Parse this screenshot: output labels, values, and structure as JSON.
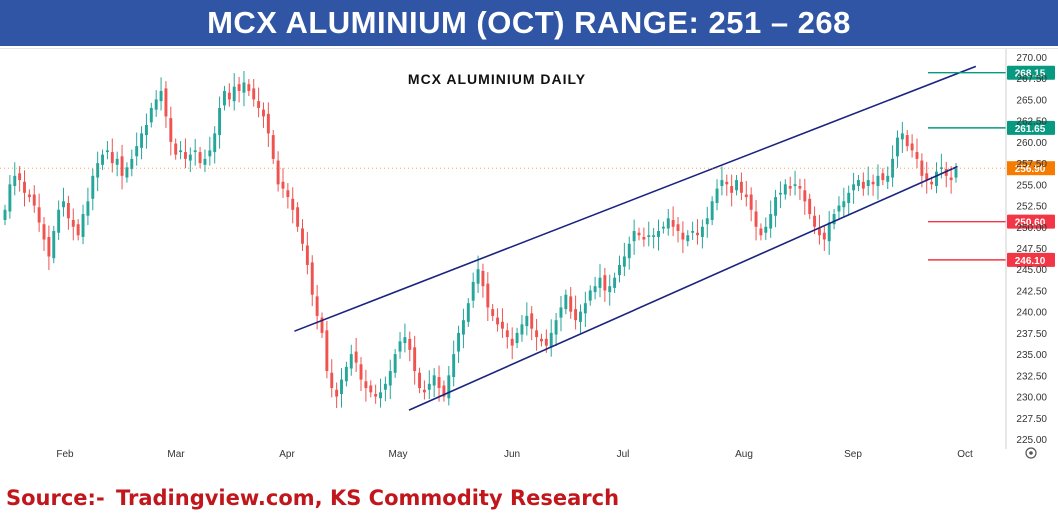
{
  "header": {
    "title": "MCX ALUMINIUM (OCT) RANGE: 251 – 268"
  },
  "footer": {
    "source_label": "Source:- ",
    "source_value": "Tradingview.com, KS Commodity Research"
  },
  "chart_data": {
    "type": "candlestick",
    "title": "MCX ALUMINIUM DAILY",
    "x_tick_labels": [
      "Feb",
      "Mar",
      "Apr",
      "May",
      "Jun",
      "Jul",
      "Aug",
      "Sep",
      "Oct"
    ],
    "y_tick_labels": [
      "225.00",
      "227.50",
      "230.00",
      "232.50",
      "235.00",
      "237.50",
      "240.00",
      "242.50",
      "245.00",
      "247.50",
      "250.00",
      "252.50",
      "255.00",
      "257.50",
      "260.00",
      "262.50",
      "265.00",
      "267.50",
      "270.00"
    ],
    "ylim": [
      225,
      270
    ],
    "grid": false,
    "colors": {
      "up": "#26a69a",
      "down": "#ef5350",
      "channel": "#1a237e",
      "resistance": "#089981",
      "support": "#f23645",
      "last_price": "#f57c00"
    },
    "levels": [
      {
        "label": "268.15",
        "value": 268.15,
        "kind": "resistance"
      },
      {
        "label": "261.65",
        "value": 261.65,
        "kind": "resistance"
      },
      {
        "label": "250.60",
        "value": 250.6,
        "kind": "support"
      },
      {
        "label": "246.10",
        "value": 246.1,
        "kind": "support"
      }
    ],
    "last_price": {
      "label": "256.90",
      "value": 256.9
    },
    "channel": {
      "upper": [
        {
          "date": "Apr 3",
          "value": 237.7
        },
        {
          "date": "Oct 4",
          "value": 268.9
        }
      ],
      "lower": [
        {
          "date": "May 4",
          "value": 228.4
        },
        {
          "date": "Sep 29",
          "value": 257.1
        }
      ]
    },
    "closes": [
      252.0,
      255.0,
      256.0,
      255.5,
      254.0,
      253.5,
      252.5,
      250.5,
      248.5,
      246.5,
      249.5,
      252.0,
      253.0,
      251.0,
      250.0,
      249.0,
      251.5,
      253.0,
      256.0,
      257.5,
      258.5,
      259.0,
      257.5,
      258.0,
      256.0,
      257.0,
      258.0,
      259.5,
      261.0,
      262.0,
      264.0,
      265.0,
      266.0,
      263.0,
      260.0,
      258.5,
      259.0,
      258.0,
      258.5,
      259.0,
      257.5,
      258.0,
      259.0,
      261.0,
      264.0,
      266.0,
      265.0,
      266.5,
      266.0,
      267.0,
      266.0,
      265.0,
      264.0,
      263.0,
      261.0,
      258.0,
      255.0,
      254.5,
      253.5,
      252.0,
      250.0,
      248.0,
      245.5,
      242.0,
      239.5,
      237.5,
      233.0,
      231.0,
      230.0,
      232.0,
      233.5,
      235.0,
      234.0,
      232.0,
      231.0,
      230.5,
      230.0,
      230.5,
      231.5,
      233.0,
      235.0,
      236.5,
      237.0,
      235.5,
      233.0,
      231.0,
      230.5,
      231.5,
      232.5,
      231.0,
      230.0,
      232.5,
      235.0,
      237.5,
      239.0,
      241.0,
      243.5,
      245.0,
      243.0,
      240.5,
      239.5,
      238.5,
      238.0,
      237.0,
      236.0,
      237.5,
      238.5,
      239.5,
      238.0,
      237.0,
      236.5,
      236.0,
      237.5,
      239.0,
      240.5,
      242.0,
      240.0,
      239.0,
      240.0,
      241.0,
      242.5,
      243.0,
      244.0,
      242.5,
      243.0,
      244.0,
      245.5,
      246.5,
      248.0,
      249.5,
      249.0,
      248.5,
      249.0,
      249.0,
      249.5,
      250.0,
      251.0,
      250.0,
      249.5,
      248.5,
      249.0,
      249.5,
      249.0,
      250.0,
      251.0,
      253.0,
      254.5,
      255.5,
      255.0,
      254.0,
      255.5,
      254.0,
      253.5,
      252.0,
      250.0,
      249.0,
      250.0,
      251.5,
      253.5,
      254.0,
      255.0,
      254.5,
      255.0,
      254.5,
      253.0,
      251.5,
      250.0,
      249.0,
      248.5,
      250.5,
      251.5,
      252.5,
      253.0,
      254.0,
      255.0,
      255.5,
      254.5,
      255.5,
      255.0,
      256.0,
      255.5,
      256.0,
      258.0,
      260.5,
      261.0,
      259.5,
      259.0,
      258.0,
      256.0,
      255.5,
      255.0,
      256.5,
      257.0,
      256.0,
      255.5,
      256.9
    ]
  }
}
